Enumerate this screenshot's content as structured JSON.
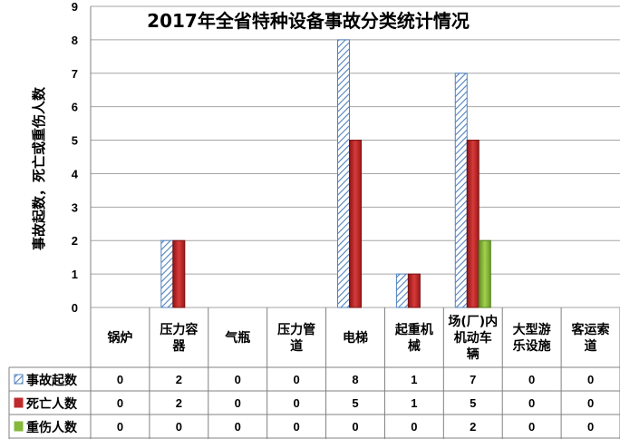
{
  "chart_data": {
    "type": "bar",
    "title": "2017年全省特种设备事故分类统计情况",
    "ylabel": "事故起数，死亡或重伤人数",
    "ylim": [
      0,
      9
    ],
    "yticks": [
      0,
      1,
      2,
      3,
      4,
      5,
      6,
      7,
      8,
      9
    ],
    "grid": true,
    "legend": "data-table",
    "categories": [
      [
        "锅炉"
      ],
      [
        "压力容",
        "器"
      ],
      [
        "气瓶"
      ],
      [
        "压力管",
        "道"
      ],
      [
        "电梯"
      ],
      [
        "起重机",
        "械"
      ],
      [
        "场(厂)内",
        "机动车",
        "辆"
      ],
      [
        "大型游",
        "乐设施"
      ],
      [
        "客运索",
        "道"
      ]
    ],
    "series": [
      {
        "name": "事故起数",
        "values": [
          0,
          2,
          0,
          0,
          8,
          1,
          7,
          0,
          0
        ],
        "color": "#4f81bd",
        "pattern": "hatch"
      },
      {
        "name": "死亡人数",
        "values": [
          0,
          2,
          0,
          0,
          5,
          1,
          5,
          0,
          0
        ],
        "color": "#c0292b",
        "pattern": "solid"
      },
      {
        "name": "重伤人数",
        "values": [
          0,
          0,
          0,
          0,
          0,
          0,
          2,
          0,
          0
        ],
        "color": "#86b83c",
        "pattern": "solid"
      }
    ]
  }
}
